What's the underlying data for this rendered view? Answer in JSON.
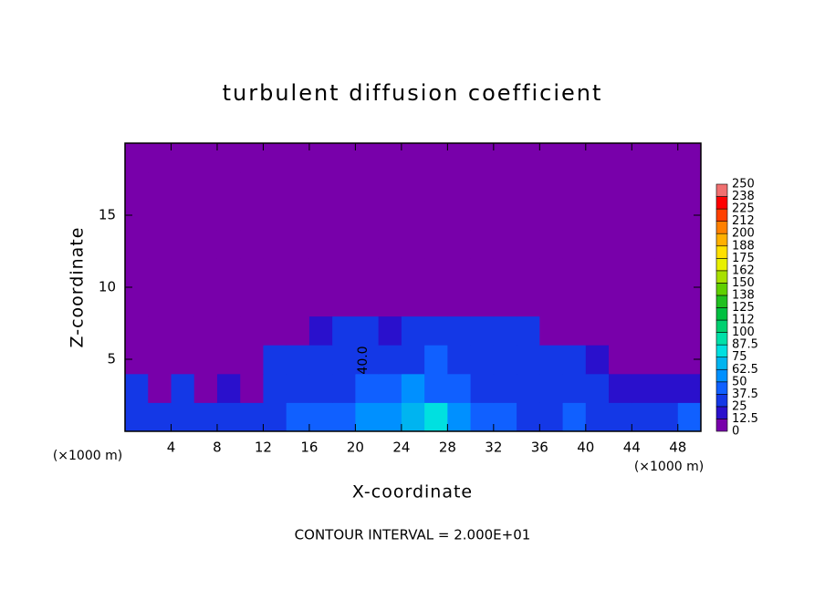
{
  "chart_data": {
    "type": "contour",
    "title": "turbulent diffusion coefficient",
    "xlabel": "X-coordinate",
    "ylabel": "Z-coordinate",
    "x_unit_label": "(×1000 m)",
    "y_unit_label": "(×1000 m)",
    "annotation": "CONTOUR INTERVAL = 2.000E+01",
    "contour_label": "40.0",
    "xlim": [
      0,
      50
    ],
    "ylim": [
      0,
      20
    ],
    "xticks": [
      4,
      8,
      12,
      16,
      20,
      24,
      28,
      32,
      36,
      40,
      44,
      48
    ],
    "yticks": [
      5,
      10,
      15
    ],
    "x": [
      1,
      3,
      5,
      7,
      9,
      11,
      13,
      15,
      17,
      19,
      21,
      23,
      25,
      27,
      29,
      31,
      33,
      35,
      37,
      39,
      41,
      43,
      45,
      47,
      49
    ],
    "y": [
      1,
      3,
      5,
      7,
      9,
      11,
      13,
      15,
      17,
      19
    ],
    "z": [
      [
        35,
        30,
        35,
        30,
        35,
        30,
        35,
        40,
        40,
        45,
        50,
        60,
        70,
        75,
        60,
        45,
        40,
        35,
        35,
        40,
        35,
        30,
        30,
        35,
        40
      ],
      [
        25,
        10,
        25,
        5,
        20,
        10,
        30,
        30,
        30,
        35,
        40,
        45,
        55,
        45,
        45,
        35,
        30,
        30,
        30,
        25,
        25,
        20,
        20,
        15,
        20
      ],
      [
        0,
        5,
        0,
        0,
        5,
        10,
        25,
        30,
        30,
        30,
        35,
        30,
        35,
        40,
        30,
        30,
        30,
        30,
        30,
        25,
        20,
        5,
        0,
        5,
        0
      ],
      [
        0,
        0,
        0,
        0,
        0,
        0,
        0,
        5,
        20,
        30,
        30,
        20,
        25,
        25,
        30,
        30,
        30,
        25,
        5,
        0,
        0,
        0,
        0,
        0,
        0
      ],
      [
        0,
        0,
        0,
        0,
        0,
        0,
        0,
        0,
        0,
        5,
        0,
        0,
        0,
        0,
        0,
        0,
        0,
        0,
        0,
        0,
        0,
        0,
        0,
        0,
        0
      ],
      [
        0,
        0,
        0,
        0,
        0,
        0,
        0,
        0,
        0,
        0,
        0,
        0,
        0,
        0,
        0,
        0,
        0,
        0,
        0,
        0,
        0,
        0,
        0,
        0,
        0
      ],
      [
        0,
        0,
        0,
        0,
        0,
        0,
        0,
        0,
        0,
        0,
        0,
        0,
        0,
        0,
        0,
        0,
        0,
        0,
        0,
        0,
        0,
        0,
        0,
        0,
        0
      ],
      [
        0,
        0,
        0,
        0,
        0,
        0,
        0,
        0,
        0,
        0,
        0,
        0,
        0,
        0,
        0,
        0,
        0,
        0,
        0,
        0,
        0,
        0,
        0,
        0,
        0
      ],
      [
        0,
        0,
        0,
        0,
        0,
        0,
        0,
        0,
        0,
        0,
        0,
        0,
        0,
        0,
        0,
        0,
        0,
        0,
        0,
        0,
        0,
        0,
        0,
        0,
        0
      ],
      [
        0,
        0,
        0,
        0,
        0,
        0,
        0,
        0,
        0,
        0,
        0,
        0,
        0,
        0,
        0,
        0,
        0,
        0,
        0,
        0,
        0,
        0,
        0,
        0,
        0
      ]
    ],
    "levels": [
      0,
      12.5,
      25,
      37.5,
      50,
      62.5,
      75,
      87.5,
      100,
      112,
      125,
      138,
      150,
      162,
      175,
      188,
      200,
      212,
      225,
      238,
      250
    ],
    "colors": [
      "#7800aa",
      "#2a10cc",
      "#1438e6",
      "#1060ff",
      "#0090ff",
      "#00b4f0",
      "#00e0e0",
      "#00e0a8",
      "#00d070",
      "#00c040",
      "#20c020",
      "#60d000",
      "#a8e000",
      "#e8f000",
      "#ffe000",
      "#ffb000",
      "#ff8000",
      "#ff4000",
      "#ff0000",
      "#f07070"
    ]
  }
}
